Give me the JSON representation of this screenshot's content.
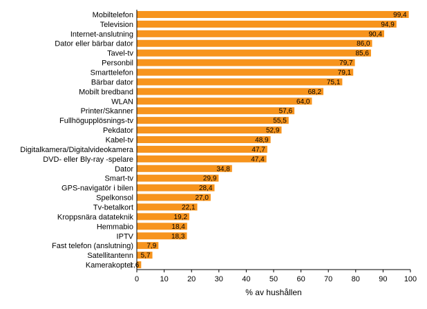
{
  "chart_data": {
    "type": "bar",
    "orientation": "horizontal",
    "categories": [
      "Mobiltelefon",
      "Television",
      "Internet-anslutning",
      "Dator eller bärbar dator",
      "Tavel-tv",
      "Personbil",
      "Smarttelefon",
      "Bärbar dator",
      "Mobilt bredband",
      "WLAN",
      "Printer/Skanner",
      "Fullhögupplösnings-tv",
      "Pekdator",
      "Kabel-tv",
      "Digitalkamera/Digitalvideokamera",
      "DVD- eller Bly-ray -spelare",
      "Dator",
      "Smart-tv",
      "GPS-navigatör i bilen",
      "Spelkonsol",
      "Tv-betalkort",
      "Kroppsnära datateknik",
      "Hemmabio",
      "IPTV",
      "Fast telefon (anslutning)",
      "Satellitantenn",
      "Kamerakopter"
    ],
    "values": [
      99.4,
      94.9,
      90.4,
      86.0,
      85.6,
      79.7,
      79.1,
      75.1,
      68.2,
      64.0,
      57.6,
      55.5,
      52.9,
      48.9,
      47.7,
      47.4,
      34.8,
      29.9,
      28.4,
      27.0,
      22.1,
      19.2,
      18.4,
      18.3,
      7.9,
      5.7,
      1.6
    ],
    "value_labels": [
      "99,4",
      "94,9",
      "90,4",
      "86,0",
      "85,6",
      "79,7",
      "79,1",
      "75,1",
      "68,2",
      "64,0",
      "57,6",
      "55,5",
      "52,9",
      "48,9",
      "47,7",
      "47,4",
      "34,8",
      "29,9",
      "28,4",
      "27,0",
      "22,1",
      "19,2",
      "18,4",
      "18,3",
      "7,9",
      "5,7",
      "1,6"
    ],
    "xlabel": "% av hushållen",
    "xlim": [
      0,
      100
    ],
    "xticks": [
      "0",
      "10",
      "20",
      "30",
      "40",
      "50",
      "60",
      "70",
      "80",
      "90",
      "100"
    ],
    "grid": false,
    "legend": "none",
    "bar_color": "#f7941d"
  }
}
